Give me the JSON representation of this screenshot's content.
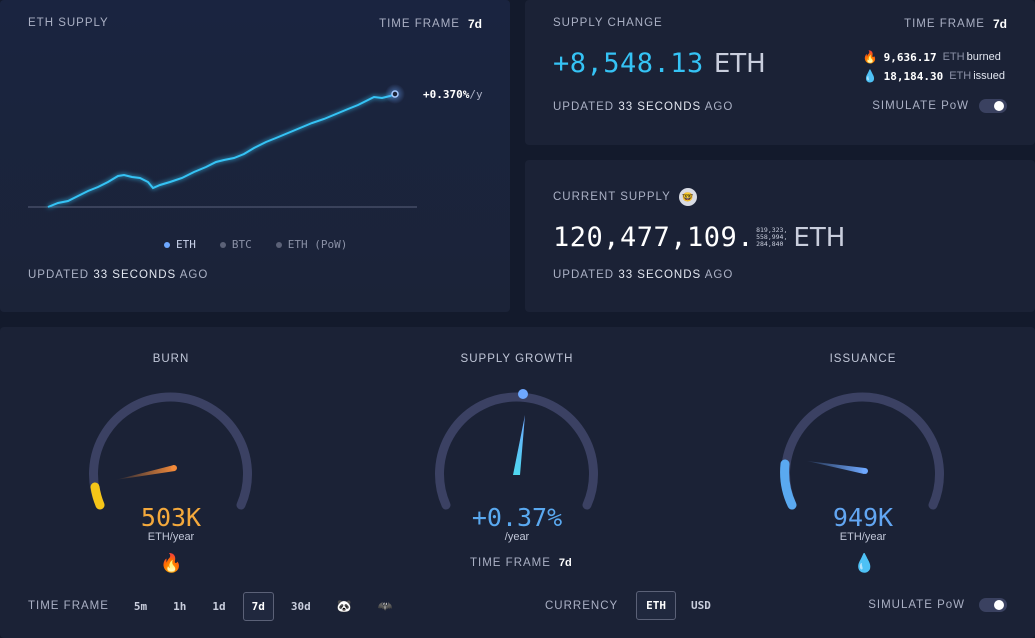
{
  "eth_supply": {
    "title": "ETH SUPPLY",
    "timeframe_label": "TIME FRAME",
    "timeframe_value": "7d",
    "chart_annotation": "+0.370%",
    "chart_annotation_unit": "/y",
    "legend": [
      "ETH",
      "BTC",
      "ETH (PoW)"
    ],
    "updated_prefix": "UPDATED",
    "updated_value": "33 SECONDS",
    "updated_suffix": "AGO"
  },
  "supply_change": {
    "title": "SUPPLY CHANGE",
    "timeframe_label": "TIME FRAME",
    "timeframe_value": "7d",
    "value": "+8,548.13",
    "unit": "ETH",
    "burned_value": "9,636.17",
    "burned_unit": "ETH",
    "burned_label": "burned",
    "issued_value": "18,184.30",
    "issued_unit": "ETH",
    "issued_label": "issued",
    "updated_prefix": "UPDATED",
    "updated_value": "33 SECONDS",
    "updated_suffix": "AGO",
    "simulate_label": "SIMULATE PoW"
  },
  "current_supply": {
    "title": "CURRENT SUPPLY",
    "value": "120,477,109.",
    "decimals": [
      "819,323,",
      "558,994,",
      "284,840"
    ],
    "unit": "ETH",
    "updated_prefix": "UPDATED",
    "updated_value": "33 SECONDS",
    "updated_suffix": "AGO"
  },
  "gauges": {
    "burn": {
      "title": "BURN",
      "value": "503K",
      "unit": "ETH/year",
      "color": "#f4a93c"
    },
    "growth": {
      "title": "SUPPLY GROWTH",
      "value": "+0.37%",
      "unit": "/year",
      "timeframe_label": "TIME FRAME",
      "timeframe_value": "7d",
      "color": "#5aa9f0"
    },
    "issuance": {
      "title": "ISSUANCE",
      "value": "949K",
      "unit": "ETH/year",
      "color": "#62a6f2"
    }
  },
  "footer": {
    "timeframe_label": "TIME FRAME",
    "timeframes": [
      "5m",
      "1h",
      "1d",
      "7d",
      "30d"
    ],
    "selected_timeframe": "7d",
    "currency_label": "CURRENCY",
    "currencies": [
      "ETH",
      "USD"
    ],
    "selected_currency": "ETH",
    "simulate_label": "SIMULATE PoW"
  },
  "colors": {
    "accent_cyan": "#35c3f5",
    "accent_blue": "#6ea8ff",
    "burn_orange": "#f4a93c",
    "burn_yellow": "#f5c518",
    "card_bg": "#1b2236",
    "page_bg": "#131a2c"
  }
}
